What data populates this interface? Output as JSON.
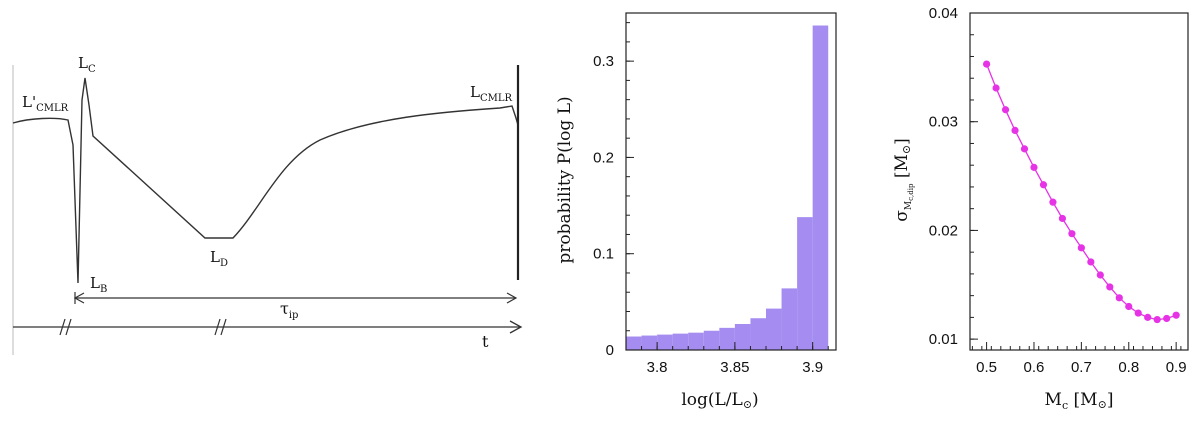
{
  "chart_data": [
    {
      "type": "line",
      "title": "",
      "xlabel": "t",
      "ylabel": "",
      "grid": false,
      "annotations": {
        "L_cmlr_prime": "L'",
        "L_cmlr_prime_sub": "CMLR",
        "L_c": "L",
        "L_c_sub": "C",
        "L_cmlr": "L",
        "L_cmlr_sub": "CMLR",
        "L_d": "L",
        "L_d_sub": "D",
        "L_b": "L",
        "L_b_sub": "B",
        "tau": "τ",
        "tau_sub": "ip"
      }
    },
    {
      "type": "bar",
      "title": "",
      "xlabel": "log(L/L",
      "xlabel_sym": "⊙",
      "xlabel_end": ")",
      "ylabel": "probability P(log L)",
      "bar_color": "#a58cf0",
      "bins": [
        {
          "from": 3.78,
          "to": 3.79,
          "value": 0.014
        },
        {
          "from": 3.79,
          "to": 3.8,
          "value": 0.015
        },
        {
          "from": 3.8,
          "to": 3.81,
          "value": 0.016
        },
        {
          "from": 3.81,
          "to": 3.82,
          "value": 0.017
        },
        {
          "from": 3.82,
          "to": 3.83,
          "value": 0.018
        },
        {
          "from": 3.83,
          "to": 3.84,
          "value": 0.02
        },
        {
          "from": 3.84,
          "to": 3.85,
          "value": 0.023
        },
        {
          "from": 3.85,
          "to": 3.86,
          "value": 0.027
        },
        {
          "from": 3.86,
          "to": 3.87,
          "value": 0.033
        },
        {
          "from": 3.87,
          "to": 3.88,
          "value": 0.043
        },
        {
          "from": 3.88,
          "to": 3.89,
          "value": 0.064
        },
        {
          "from": 3.89,
          "to": 3.9,
          "value": 0.138
        },
        {
          "from": 3.9,
          "to": 3.91,
          "value": 0.337
        }
      ],
      "xlim": [
        3.78,
        3.915
      ],
      "ylim": [
        0,
        0.35
      ],
      "xticks": [
        "3.8",
        "3.85",
        "3.9"
      ],
      "yticks": [
        "0",
        "0.1",
        "0.2",
        "0.3"
      ]
    },
    {
      "type": "line",
      "title": "",
      "xlabel": "M",
      "xlabel_sub": "c",
      "xlabel_unit": "[M",
      "xlabel_unit_sym": "⊙",
      "xlabel_unit_end": "]",
      "ylabel": "σ",
      "ylabel_sub": "M",
      "ylabel_subsub": "c,dip",
      "ylabel_unit": "[M",
      "ylabel_unit_sym": "⊙",
      "ylabel_unit_end": "]",
      "line_color": "#e633e6",
      "x": [
        0.5,
        0.52,
        0.54,
        0.56,
        0.58,
        0.6,
        0.62,
        0.64,
        0.66,
        0.68,
        0.7,
        0.72,
        0.74,
        0.76,
        0.78,
        0.8,
        0.82,
        0.84,
        0.86,
        0.88,
        0.9
      ],
      "y": [
        0.0353,
        0.0331,
        0.0311,
        0.0292,
        0.0275,
        0.0258,
        0.0242,
        0.0226,
        0.0211,
        0.0197,
        0.0184,
        0.0171,
        0.0159,
        0.0148,
        0.0138,
        0.013,
        0.0124,
        0.012,
        0.0118,
        0.0119,
        0.0122
      ],
      "xlim": [
        0.465,
        0.925
      ],
      "ylim": [
        0.009,
        0.04
      ],
      "xticks": [
        "0.5",
        "0.6",
        "0.7",
        "0.8",
        "0.9"
      ],
      "yticks": [
        "0.01",
        "0.02",
        "0.03",
        "0.04"
      ]
    }
  ]
}
